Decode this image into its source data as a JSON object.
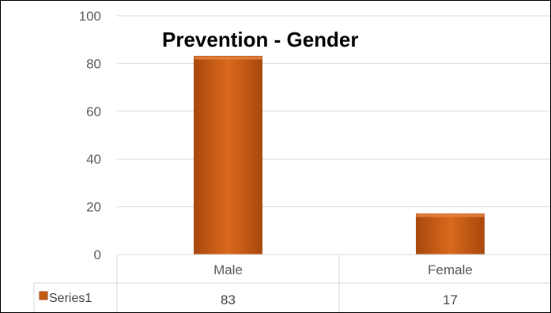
{
  "chart_data": {
    "type": "bar",
    "title": "Prevention - Gender",
    "categories": [
      "Male",
      "Female"
    ],
    "series": [
      {
        "name": "Series1",
        "values": [
          83,
          17
        ],
        "color": "#C55A11"
      }
    ],
    "ylim": [
      0,
      100
    ],
    "yticks": [
      "0",
      "20",
      "40",
      "60",
      "80",
      "100"
    ],
    "grid": true,
    "legend": "data-table-left",
    "data_table": true
  }
}
